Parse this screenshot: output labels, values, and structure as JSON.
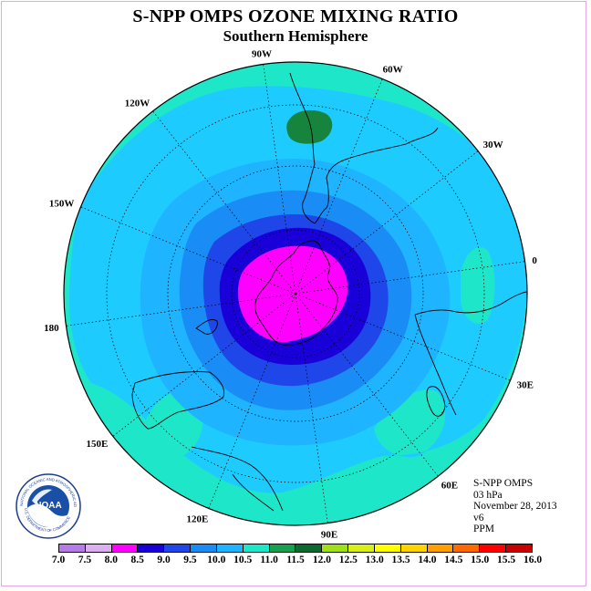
{
  "title": "S-NPP OMPS OZONE MIXING RATIO",
  "subtitle": "Southern Hemisphere",
  "info": {
    "instrument": "S-NPP OMPS",
    "level": "03 hPa",
    "date": "November 28, 2013",
    "version": "v6",
    "units": "PPM"
  },
  "logo": {
    "text": "NOAA",
    "ring_text": "NATIONAL OCEANIC AND ATMOSPHERIC ADMINISTRATION",
    "ring_text_bottom": "U.S. DEPARTMENT OF COMMERCE"
  },
  "longitude_labels": [
    {
      "label": "90W",
      "deg": -90
    },
    {
      "label": "60W",
      "deg": -60
    },
    {
      "label": "30W",
      "deg": -30
    },
    {
      "label": "0",
      "deg": 0
    },
    {
      "label": "30E",
      "deg": 30
    },
    {
      "label": "60E",
      "deg": 60
    },
    {
      "label": "90E",
      "deg": 90
    },
    {
      "label": "120E",
      "deg": 120
    },
    {
      "label": "150E",
      "deg": 150
    },
    {
      "label": "180",
      "deg": 180
    },
    {
      "label": "150W",
      "deg": -150
    },
    {
      "label": "120W",
      "deg": -120
    }
  ],
  "colorbar": {
    "ticks": [
      "7.0",
      "7.5",
      "8.0",
      "8.5",
      "9.0",
      "9.5",
      "10.0",
      "10.5",
      "11.0",
      "11.5",
      "12.0",
      "12.5",
      "13.0",
      "13.5",
      "14.0",
      "14.5",
      "15.0",
      "15.5",
      "16.0"
    ],
    "colors": [
      "#b57ce8",
      "#dcb0f0",
      "#ff00ff",
      "#1a00d8",
      "#1f46e8",
      "#1a8cf5",
      "#1eb4ff",
      "#1ee6c8",
      "#16a050",
      "#0a6a30",
      "#a0e018",
      "#d8f018",
      "#ffff00",
      "#ffd400",
      "#ffa000",
      "#ff6a00",
      "#ff0000",
      "#c80000",
      "#8b5a3c"
    ]
  },
  "colors": {
    "contour_16": "#1ee6c8",
    "contour_105": "#1ecbff",
    "contour_10": "#1eb4ff",
    "contour_95": "#1a8cf5",
    "contour_90": "#1f46e8",
    "contour_85": "#1a00d8",
    "contour_80": "#ff00ff",
    "contour_115": "#16843c"
  }
}
